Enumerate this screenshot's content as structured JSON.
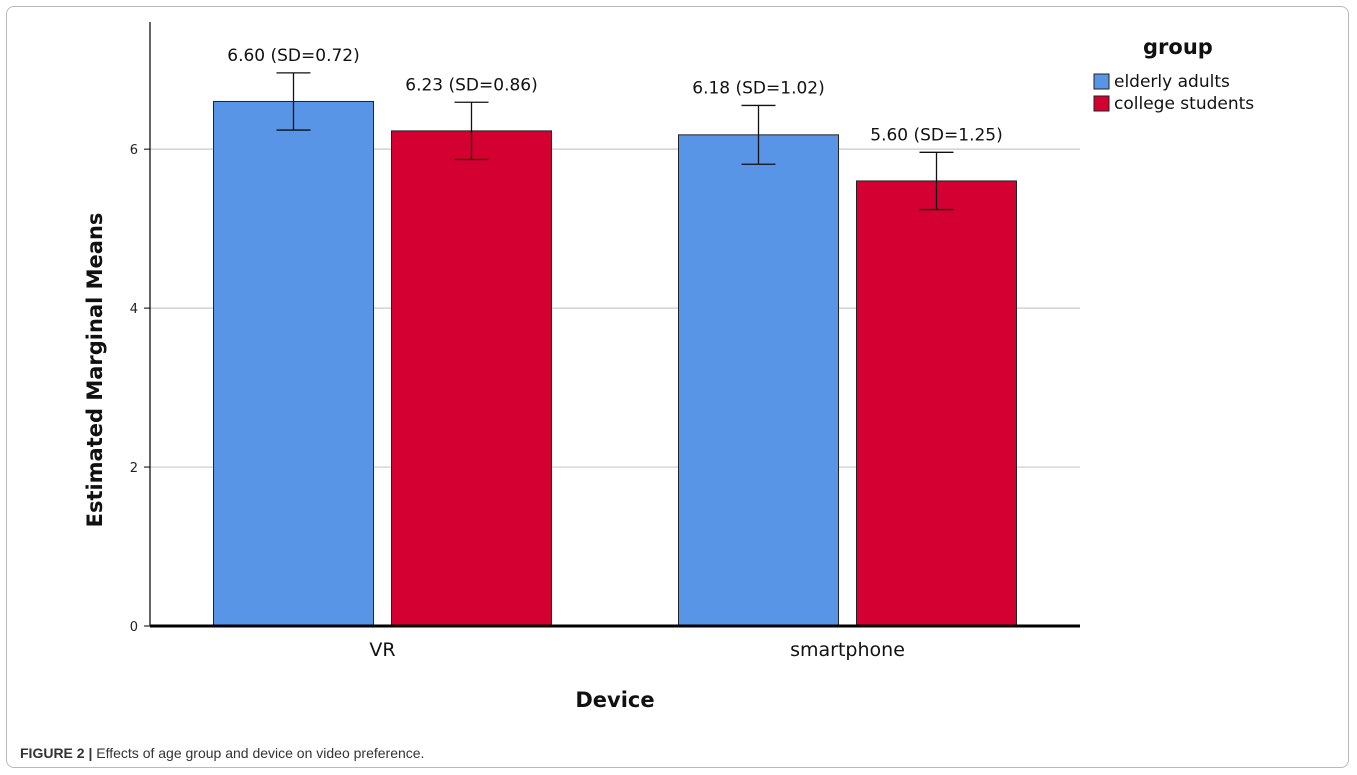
{
  "chart_data": {
    "type": "bar",
    "categories": [
      "VR",
      "smartphone"
    ],
    "series": [
      {
        "name": "elderly adults",
        "color": "#5895e6",
        "values": [
          6.6,
          6.18
        ],
        "error_low": [
          6.24,
          5.81
        ],
        "error_high": [
          6.96,
          6.55
        ]
      },
      {
        "name": "college students",
        "color": "#d40032",
        "values": [
          6.23,
          5.6
        ],
        "error_low": [
          5.87,
          5.24
        ],
        "error_high": [
          6.59,
          5.96
        ]
      }
    ],
    "data_labels": [
      [
        "6.60 (SD=0.72)",
        "6.18 (SD=1.02)"
      ],
      [
        "6.23 (SD=0.86)",
        "5.60 (SD=1.25)"
      ]
    ],
    "xlabel": "Device",
    "ylabel": "Estimated Marginal Means",
    "ylim": [
      0,
      7.6
    ],
    "yticks": [
      0,
      2,
      4,
      6
    ],
    "grid": true,
    "legend": {
      "title": "group",
      "position": "top-right"
    }
  },
  "caption": {
    "label": "FIGURE 2 |",
    "text": " Effects of age group and device on video preference."
  }
}
